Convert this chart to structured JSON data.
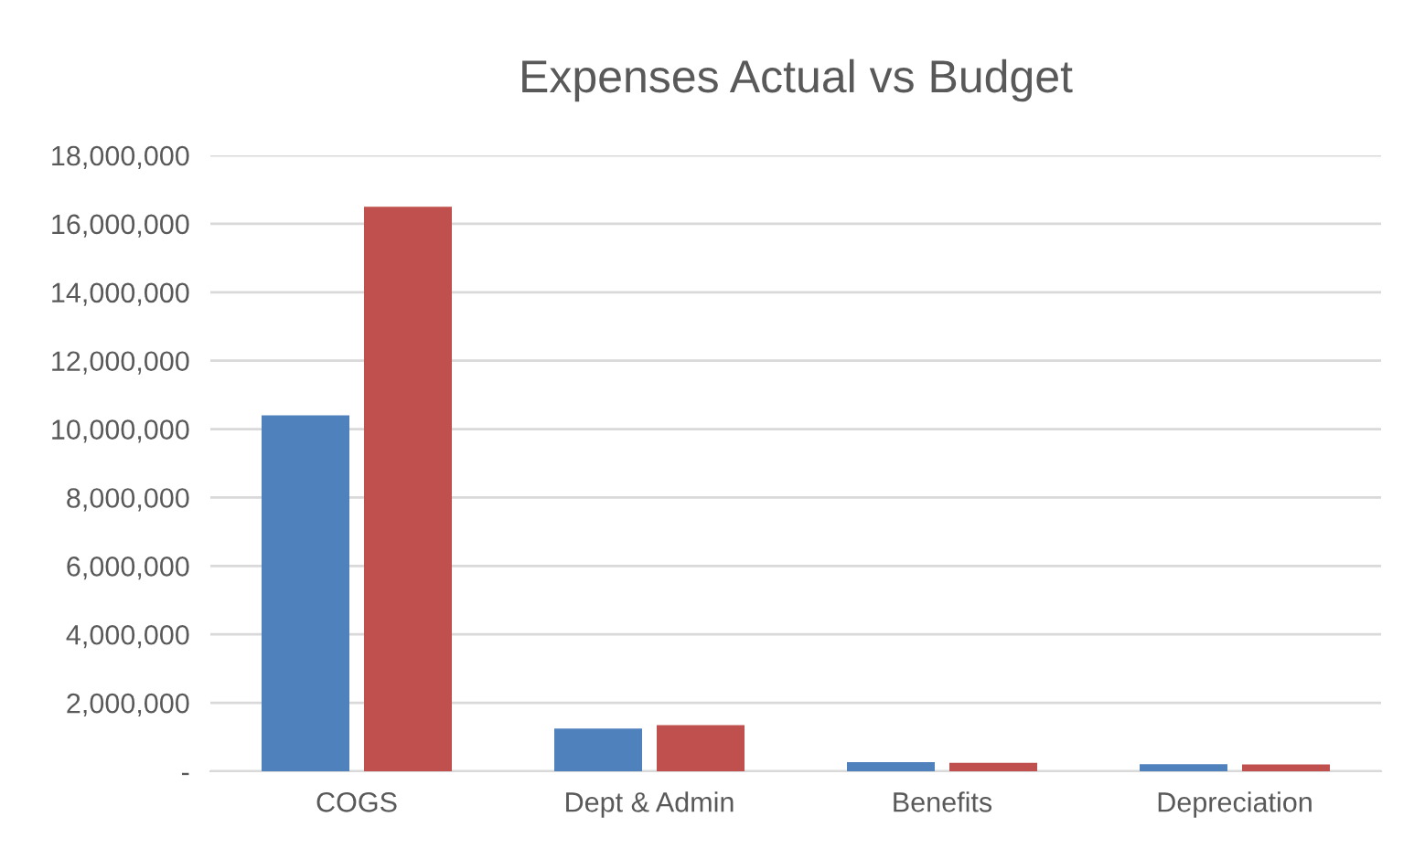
{
  "chart_data": {
    "type": "bar",
    "title": "Expenses Actual vs Budget",
    "categories": [
      "COGS",
      "Dept & Admin",
      "Benefits",
      "Depreciation"
    ],
    "series": [
      {
        "color": "#4f81bd",
        "values": [
          10400000,
          1250000,
          270000,
          210000
        ]
      },
      {
        "color": "#c0504d",
        "values": [
          16500000,
          1350000,
          250000,
          200000
        ]
      }
    ],
    "ylim": [
      0,
      18000000
    ],
    "yticks": [
      {
        "value": 0,
        "label": "-"
      },
      {
        "value": 2000000,
        "label": "2,000,000"
      },
      {
        "value": 4000000,
        "label": "4,000,000"
      },
      {
        "value": 6000000,
        "label": "6,000,000"
      },
      {
        "value": 8000000,
        "label": "8,000,000"
      },
      {
        "value": 10000000,
        "label": "10,000,000"
      },
      {
        "value": 12000000,
        "label": "12,000,000"
      },
      {
        "value": 14000000,
        "label": "14,000,000"
      },
      {
        "value": 16000000,
        "label": "16,000,000"
      },
      {
        "value": 18000000,
        "label": "18,000,000"
      }
    ],
    "grid": "y",
    "legend": false
  }
}
